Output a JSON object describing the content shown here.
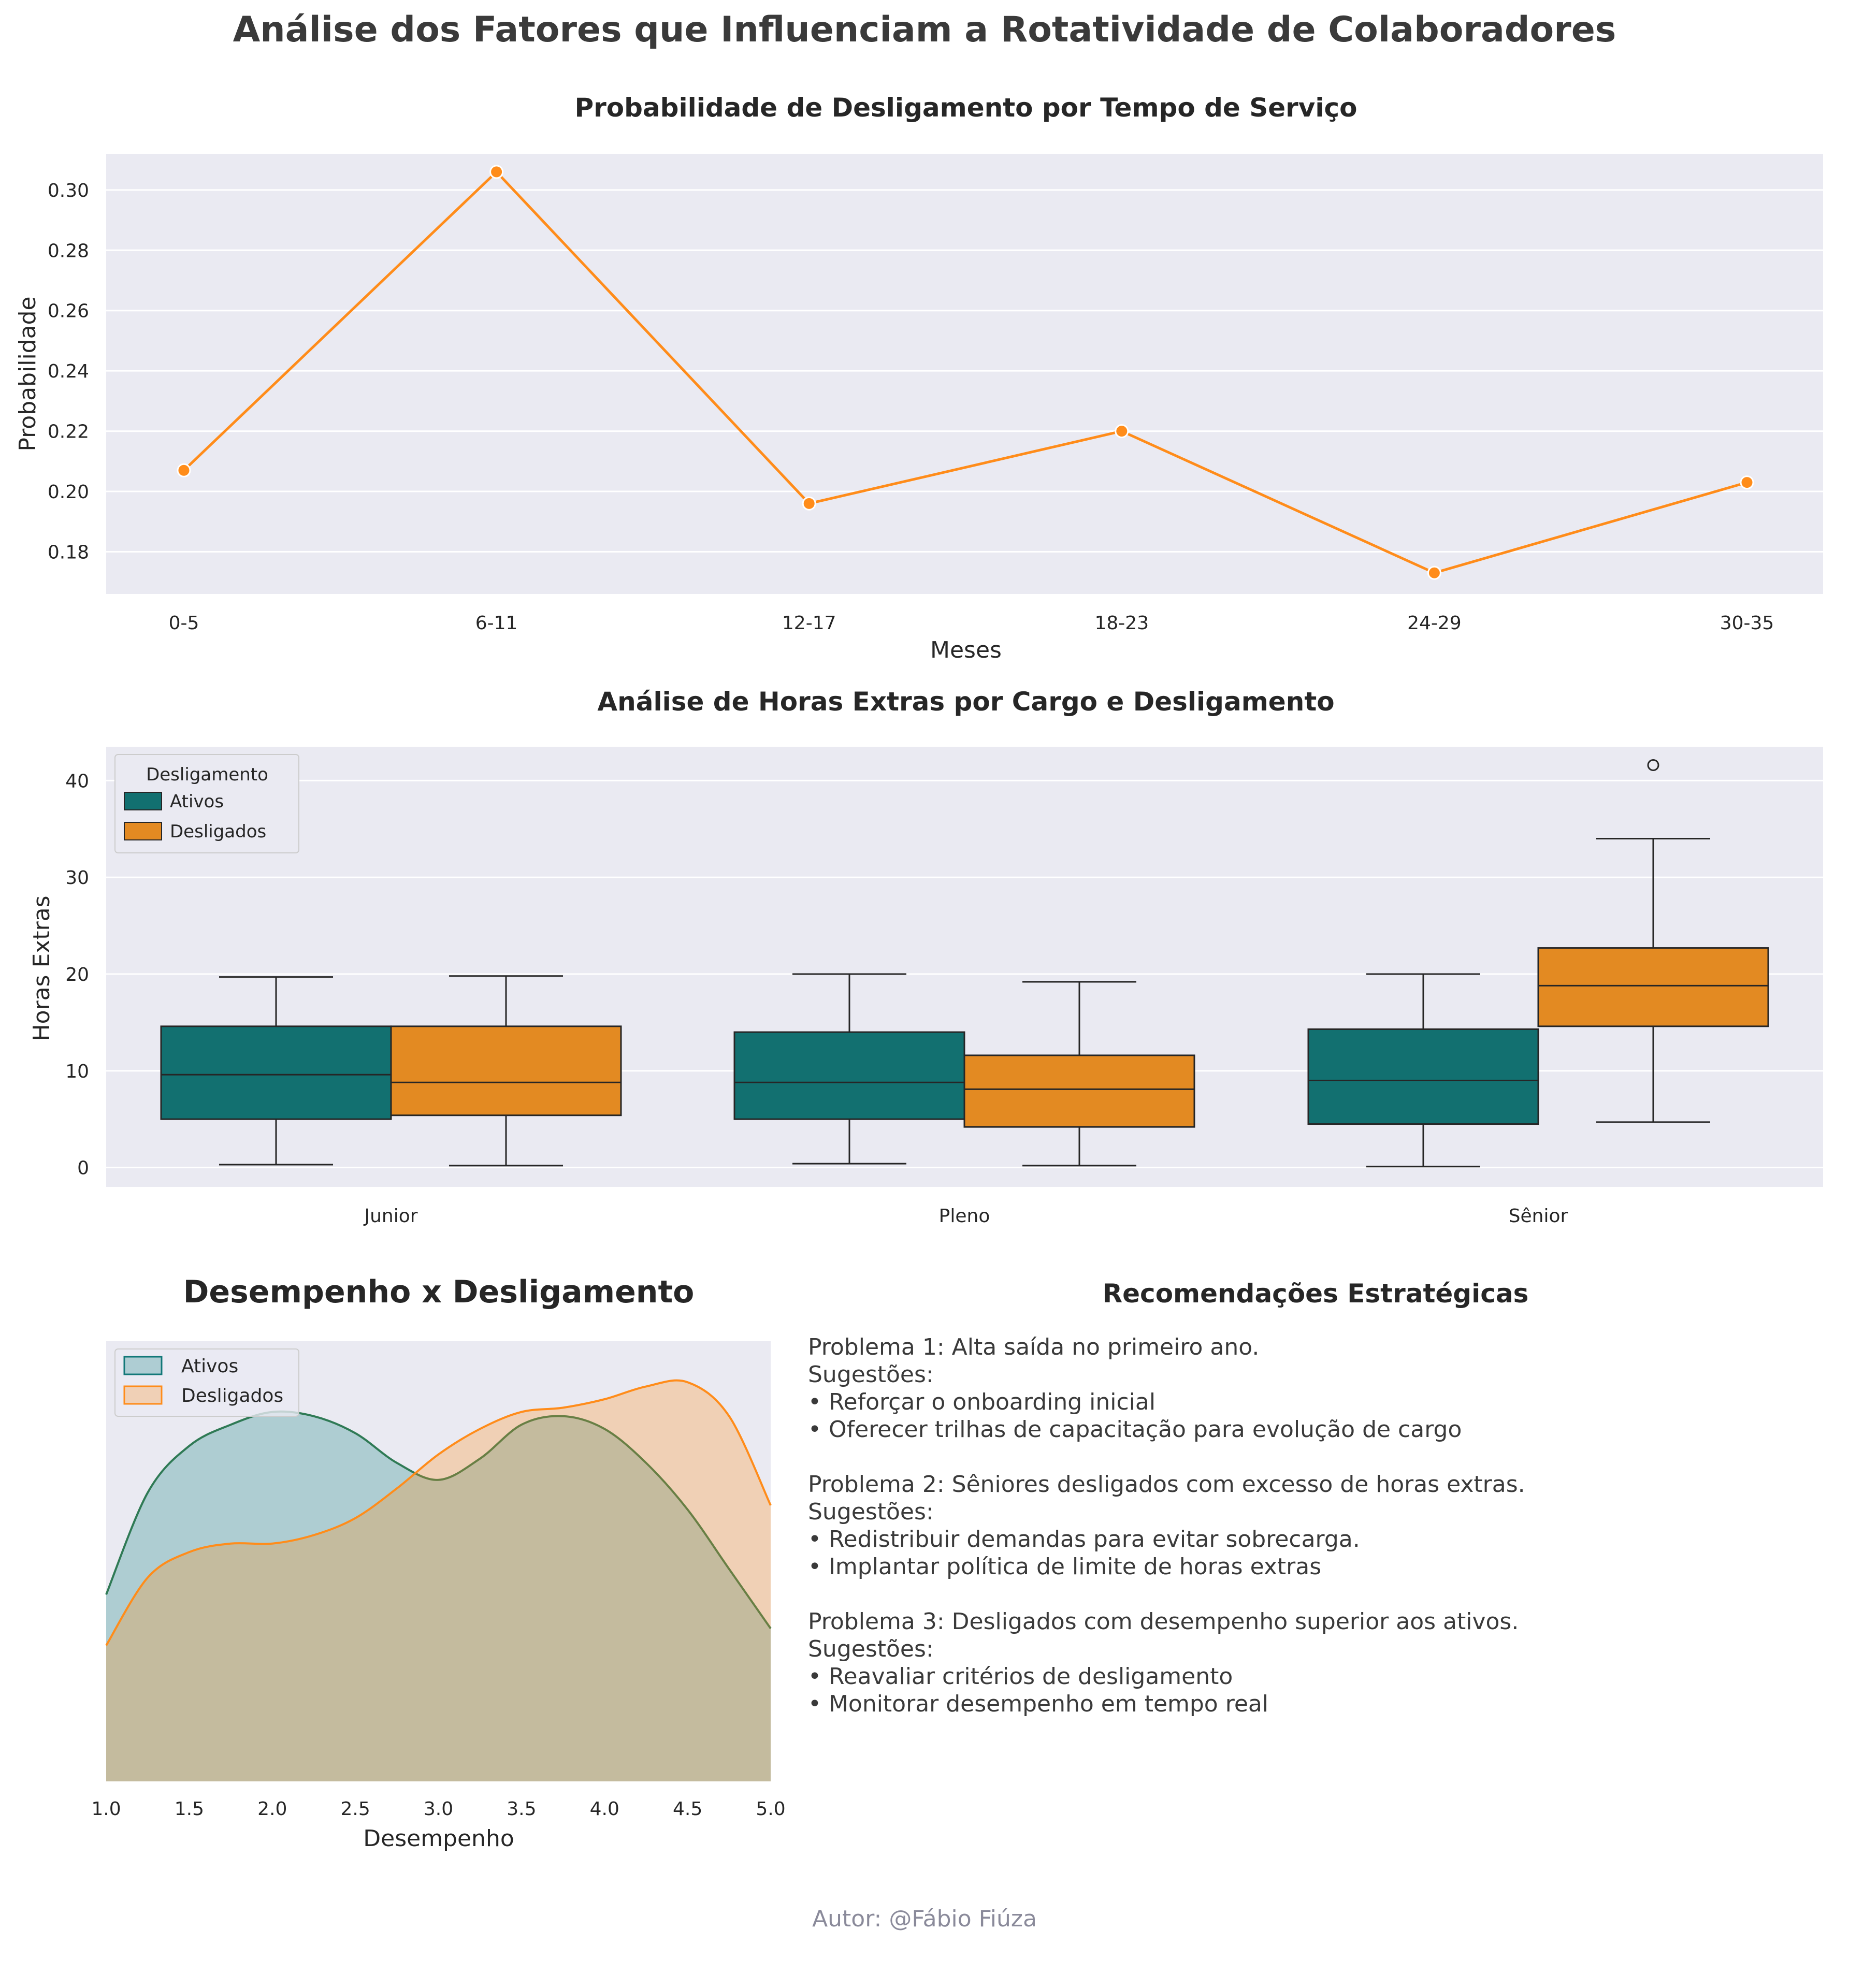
{
  "title": "Análise dos Fatores que Influenciam a Rotatividade de Colaboradores",
  "author": "Autor: @Fábio Fiúza",
  "colors": {
    "panel_bg": "#eaeaf2",
    "grid": "#ffffff",
    "ativos": "#127070",
    "desligados": "#e38a22",
    "line": "#ff8c1a",
    "text": "#3a3a3a"
  },
  "chart_data": [
    {
      "type": "line",
      "title": "Probabilidade de Desligamento por Tempo de Serviço",
      "xlabel": "Meses",
      "ylabel": "Probabilidade",
      "categories": [
        "0-5",
        "6-11",
        "12-17",
        "18-23",
        "24-29",
        "30-35"
      ],
      "values": [
        0.207,
        0.306,
        0.196,
        0.22,
        0.173,
        0.203
      ],
      "ylim": [
        0.166,
        0.312
      ],
      "yticks": [
        "0.18",
        "0.20",
        "0.22",
        "0.24",
        "0.26",
        "0.28",
        "0.30"
      ],
      "grid": true
    },
    {
      "type": "box",
      "title": "Análise de Horas Extras por Cargo e Desligamento",
      "xlabel": "",
      "ylabel": "Horas Extras",
      "categories": [
        "Junior",
        "Pleno",
        "Sênior"
      ],
      "yticks": [
        "0",
        "10",
        "20",
        "30",
        "40"
      ],
      "ylim": [
        -2,
        43.5
      ],
      "legend": {
        "title": "Desligamento",
        "position": "top-left",
        "entries": [
          "Ativos",
          "Desligados"
        ]
      },
      "series": [
        {
          "name": "Ativos",
          "boxes": [
            {
              "min": 0.3,
              "q1": 5.0,
              "median": 9.6,
              "q3": 14.6,
              "max": 19.7,
              "outliers": []
            },
            {
              "min": 0.4,
              "q1": 5.0,
              "median": 8.8,
              "q3": 14.0,
              "max": 20.0,
              "outliers": []
            },
            {
              "min": 0.1,
              "q1": 4.5,
              "median": 9.0,
              "q3": 14.3,
              "max": 20.0,
              "outliers": []
            }
          ]
        },
        {
          "name": "Desligados",
          "boxes": [
            {
              "min": 0.2,
              "q1": 5.4,
              "median": 8.8,
              "q3": 14.6,
              "max": 19.8,
              "outliers": []
            },
            {
              "min": 0.2,
              "q1": 4.2,
              "median": 8.1,
              "q3": 11.6,
              "max": 19.2,
              "outliers": []
            },
            {
              "min": 4.7,
              "q1": 14.6,
              "median": 18.8,
              "q3": 22.7,
              "max": 34.0,
              "outliers": [
                41.6
              ]
            }
          ]
        }
      ]
    },
    {
      "type": "area",
      "title": "Desempenho x Desligamento",
      "xlabel": "Desempenho",
      "ylabel": "",
      "xlim": [
        1.0,
        5.0
      ],
      "xticks": [
        "1.0",
        "1.5",
        "2.0",
        "2.5",
        "3.0",
        "3.5",
        "4.0",
        "4.5",
        "5.0"
      ],
      "legend": {
        "position": "top-left",
        "entries": [
          "Ativos",
          "Desligados"
        ]
      },
      "x": [
        1.0,
        1.25,
        1.5,
        1.75,
        2.0,
        2.25,
        2.5,
        2.75,
        3.0,
        3.25,
        3.5,
        3.75,
        4.0,
        4.25,
        4.5,
        4.75,
        5.0
      ],
      "series": [
        {
          "name": "Ativos",
          "values": [
            0.44,
            0.68,
            0.79,
            0.84,
            0.87,
            0.86,
            0.82,
            0.75,
            0.71,
            0.76,
            0.84,
            0.86,
            0.83,
            0.75,
            0.64,
            0.5,
            0.36
          ]
        },
        {
          "name": "Desligados",
          "values": [
            0.32,
            0.48,
            0.54,
            0.56,
            0.56,
            0.58,
            0.62,
            0.69,
            0.77,
            0.83,
            0.87,
            0.88,
            0.9,
            0.93,
            0.94,
            0.86,
            0.65
          ]
        }
      ],
      "ymax": 1.0
    }
  ],
  "recommendations": {
    "title": "Recomendações Estratégicas",
    "blocks": [
      {
        "problem": "Problema 1: Alta saída no primeiro ano.",
        "label": "Sugestões:",
        "items": [
          "• Reforçar o onboarding inicial",
          "• Oferecer trilhas de capacitação para evolução de cargo"
        ]
      },
      {
        "problem": "Problema 2: Sêniores desligados com excesso de horas extras.",
        "label": "Sugestões:",
        "items": [
          "• Redistribuir demandas para evitar sobrecarga.",
          "• Implantar política de limite de horas extras"
        ]
      },
      {
        "problem": "Problema 3: Desligados com desempenho superior aos ativos.",
        "label": "Sugestões:",
        "items": [
          "• Reavaliar critérios de desligamento",
          "• Monitorar desempenho em tempo real"
        ]
      }
    ]
  }
}
